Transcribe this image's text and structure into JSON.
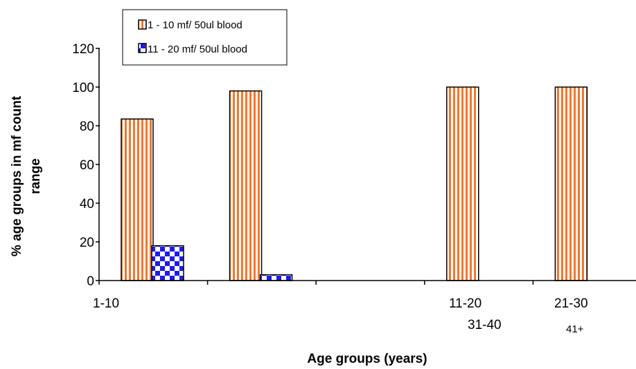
{
  "chart_data": {
    "type": "bar",
    "xlabel": "Age groups (years)",
    "ylabel_line1": "% age  groups in mf count",
    "ylabel_line2": "range",
    "ylim": [
      0,
      120
    ],
    "yticks": [
      "0",
      "20",
      "40",
      "60",
      "80",
      "100",
      "120"
    ],
    "grid": false,
    "legend_position": "top-left",
    "category_labels": [
      "1-10",
      "11-20",
      "21-30",
      "31-40",
      "41+"
    ],
    "series": [
      {
        "name": "1 - 10 mf/ 50ul blood",
        "color": "#F4762B",
        "pattern": "vertical-stripes",
        "values": [
          83.5,
          98,
          null,
          100,
          100
        ]
      },
      {
        "name": "11 - 20 mf/ 50ul blood",
        "color": "#1C1CF0",
        "pattern": "checkerboard",
        "values": [
          18,
          3,
          null,
          0,
          0
        ]
      }
    ]
  }
}
